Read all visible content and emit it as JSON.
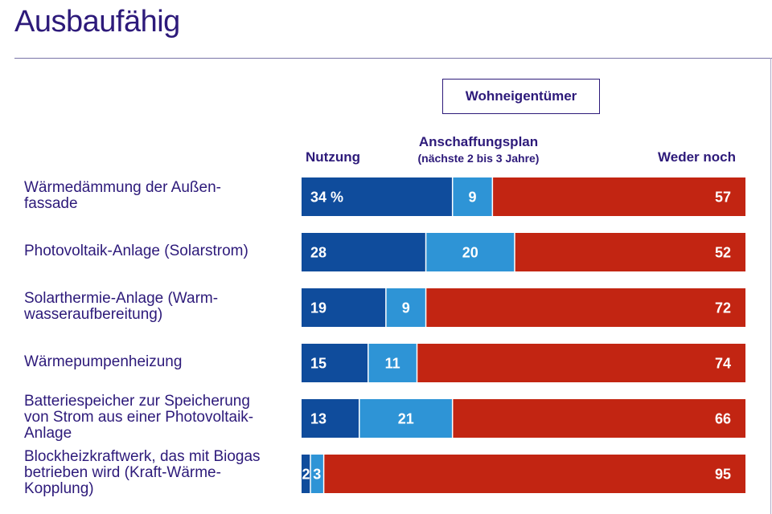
{
  "page": {
    "title": "Ausbaufähig"
  },
  "legend": {
    "group_label": "Wohneigentümer",
    "nutzung": "Nutzung",
    "plan": "Anschaffungsplan",
    "plan_sub": "(nächste 2 bis 3 Jahre)",
    "weder": "Weder noch"
  },
  "colors": {
    "nutzung": "#0f4c9c",
    "plan": "#2e94d6",
    "weder": "#c22512",
    "text": "#2d1a7a"
  },
  "chart_data": {
    "type": "bar",
    "orientation": "horizontal",
    "stacked": true,
    "unit": "%",
    "title": "Ausbaufähig",
    "categories": [
      "Wärmedämmung der Außen-\nfassade",
      "Photovoltaik-Anlage (Solarstrom)",
      "Solarthermie-Anlage (Warm-\nwasseraufbereitung)",
      "Wärmepumpenheizung",
      "Batteriespeicher zur Speicherung\nvon Strom aus einer Photovoltaik-\nAnlage",
      "Blockheizkraftwerk, das mit Biogas\nbetrieben wird (Kraft-Wärme-\nKopplung)"
    ],
    "series": [
      {
        "name": "Nutzung",
        "values": [
          34,
          28,
          19,
          15,
          13,
          2
        ],
        "labels": [
          "34 %",
          "28",
          "19",
          "15",
          "13",
          "2"
        ]
      },
      {
        "name": "Anschaffungsplan",
        "values": [
          9,
          20,
          9,
          11,
          21,
          3
        ],
        "labels": [
          "9",
          "20",
          "9",
          "11",
          "21",
          "3"
        ]
      },
      {
        "name": "Weder noch",
        "values": [
          57,
          52,
          72,
          74,
          66,
          95
        ],
        "labels": [
          "57",
          "52",
          "72",
          "74",
          "66",
          "95"
        ]
      }
    ],
    "legend_position": "top",
    "grid": false
  }
}
